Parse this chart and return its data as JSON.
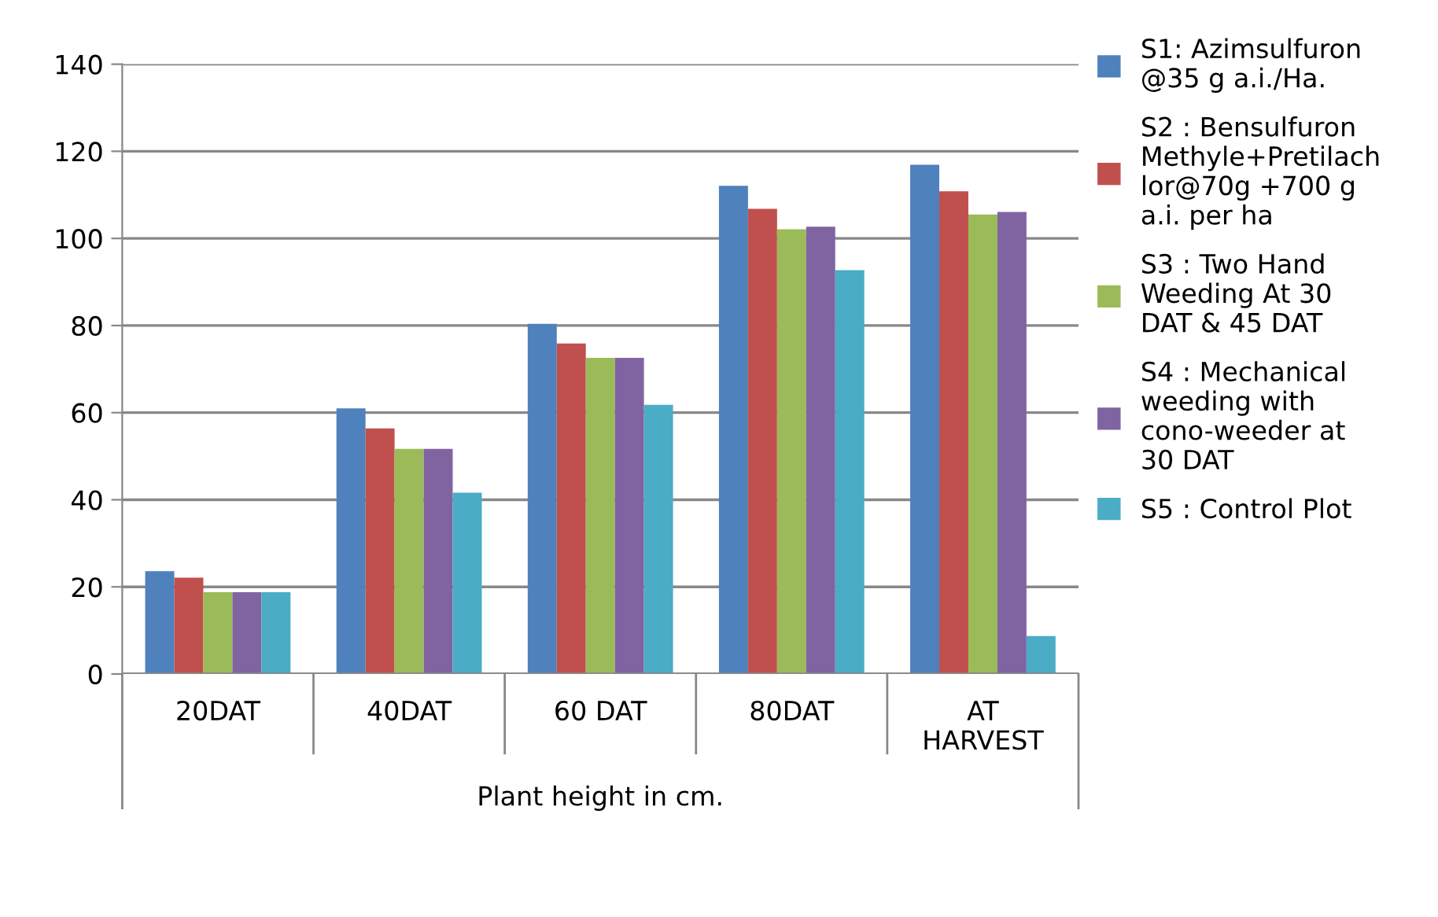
{
  "chart_data": {
    "type": "bar",
    "xlabel": "Plant height in cm.",
    "categories": [
      "20DAT",
      "40DAT",
      "60 DAT",
      "80DAT",
      "AT\nHARVEST"
    ],
    "series": [
      {
        "name": "S1: Azimsulfuron\n@35 g a.i./Ha.",
        "color": "#4f81bd",
        "values": [
          23.6,
          61.0,
          80.4,
          112.1,
          116.9
        ]
      },
      {
        "name": "S2 : Bensulfuron\nMethyle+Pretilach\nlor@70g +700 g\na.i. per ha",
        "color": "#c0504d",
        "values": [
          22.1,
          56.4,
          75.9,
          106.8,
          110.8
        ]
      },
      {
        "name": "S3 : Two Hand\nWeeding At 30\nDAT & 45 DAT",
        "color": "#9bbb59",
        "values": [
          18.8,
          51.7,
          72.6,
          102.1,
          105.5
        ]
      },
      {
        "name": "S4 : Mechanical\nweeding with\ncono-weeder at\n30 DAT",
        "color": "#8064a2",
        "values": [
          18.8,
          51.7,
          72.6,
          102.7,
          106.1
        ]
      },
      {
        "name": "S5 : Control Plot",
        "color": "#4bacc6",
        "values": [
          18.8,
          41.6,
          61.8,
          92.7,
          8.7
        ]
      }
    ],
    "ylim": [
      0,
      140
    ],
    "yticks": [
      0,
      20,
      40,
      60,
      80,
      100,
      120,
      140
    ],
    "grid": "y",
    "legend": "right"
  }
}
